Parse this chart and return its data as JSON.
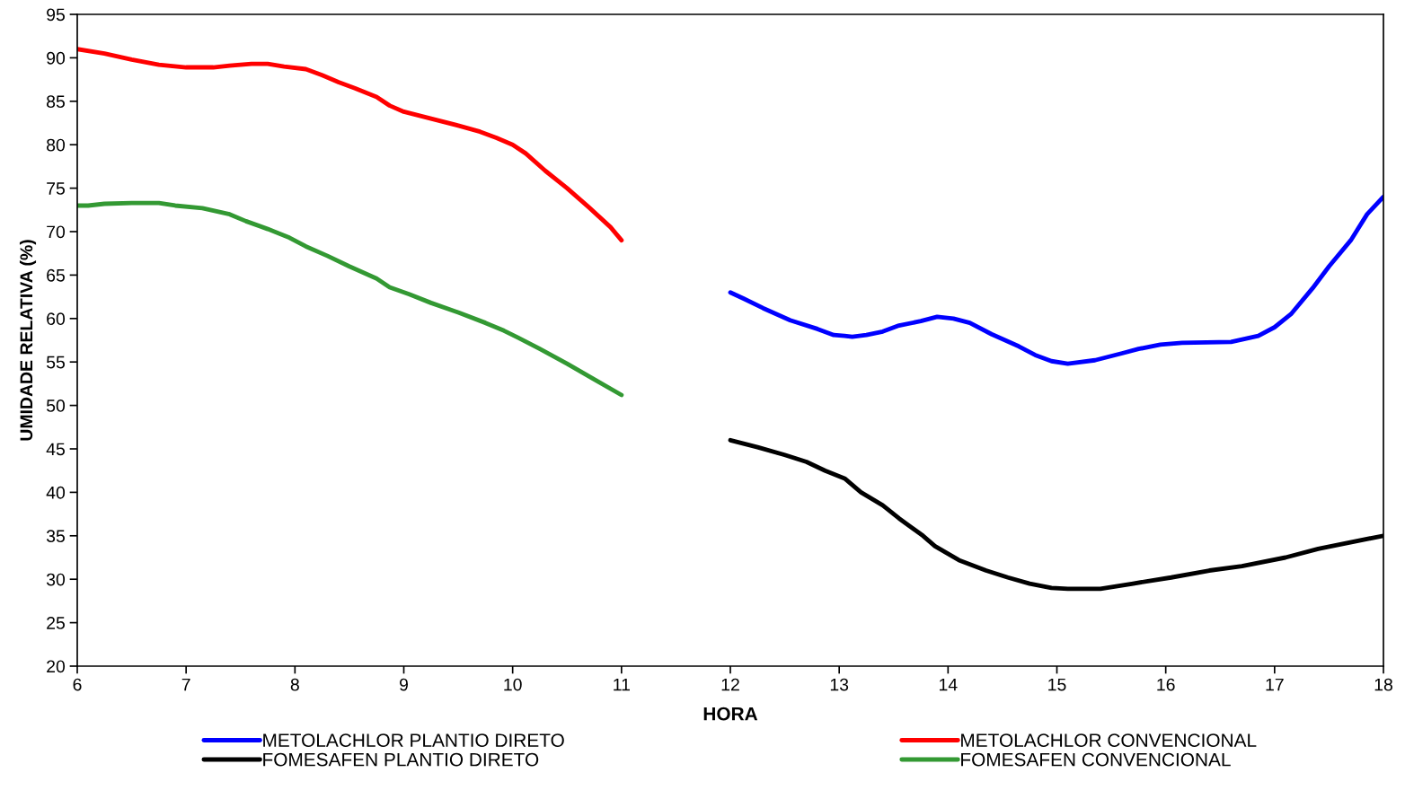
{
  "chart_data": {
    "type": "line",
    "xlabel": "HORA",
    "ylabel": "UMIDADE RELATIVA (%)",
    "xlim": [
      6,
      18
    ],
    "ylim": [
      20,
      95
    ],
    "xticks": [
      6,
      7,
      8,
      9,
      10,
      11,
      12,
      13,
      14,
      15,
      16,
      17,
      18
    ],
    "yticks": [
      20,
      25,
      30,
      35,
      40,
      45,
      50,
      55,
      60,
      65,
      70,
      75,
      80,
      85,
      90,
      95
    ],
    "grid": false,
    "legend": "bottom",
    "marker": "none",
    "line_style": "solid",
    "series": [
      {
        "name": "METOLACHLOR PLANTIO DIRETO",
        "color": "#0000ff",
        "x": [
          12,
          12.12,
          12.3,
          12.55,
          12.8,
          12.95,
          13.05,
          13.12,
          13.25,
          13.4,
          13.55,
          13.75,
          13.9,
          14.05,
          14.2,
          14.4,
          14.65,
          14.8,
          14.95,
          15.1,
          15.35,
          15.6,
          15.75,
          15.95,
          16.15,
          16.6,
          16.85,
          17,
          17.15,
          17.35,
          17.5,
          17.7,
          17.85,
          18
        ],
        "values": [
          63,
          62.3,
          61.2,
          59.8,
          58.8,
          58.1,
          58,
          57.9,
          58.1,
          58.5,
          59.2,
          59.7,
          60.2,
          60,
          59.5,
          58.2,
          56.8,
          55.8,
          55.1,
          54.8,
          55.2,
          56,
          56.5,
          57,
          57.2,
          57.3,
          58,
          59,
          60.5,
          63.5,
          66,
          69,
          72,
          74
        ]
      },
      {
        "name": "FOMESAFEN PLANTIO DIRETO",
        "color": "#000000",
        "x": [
          12,
          12.25,
          12.5,
          12.7,
          12.87,
          13.05,
          13.2,
          13.4,
          13.55,
          13.77,
          13.88,
          14.1,
          14.35,
          14.55,
          14.75,
          14.95,
          15.1,
          15.4,
          15.7,
          16.05,
          16.4,
          16.7,
          17.1,
          17.4,
          18
        ],
        "values": [
          46,
          45.2,
          44.3,
          43.5,
          42.5,
          41.6,
          40,
          38.5,
          37,
          35,
          33.8,
          32.2,
          31,
          30.2,
          29.5,
          29,
          28.9,
          28.9,
          29.5,
          30.2,
          31,
          31.5,
          32.5,
          33.5,
          35
        ]
      },
      {
        "name": "METOLACHLOR CONVENCIONAL",
        "color": "#ff0000",
        "x": [
          6,
          6.25,
          6.5,
          6.75,
          7,
          7.25,
          7.4,
          7.6,
          7.75,
          7.9,
          8.1,
          8.25,
          8.4,
          8.55,
          8.75,
          8.87,
          9,
          9.25,
          9.5,
          9.7,
          9.85,
          10,
          10.12,
          10.3,
          10.5,
          10.7,
          10.9,
          11
        ],
        "values": [
          91,
          90.5,
          89.8,
          89.2,
          88.9,
          88.9,
          89.1,
          89.3,
          89.3,
          89,
          88.7,
          88,
          87.2,
          86.5,
          85.5,
          84.5,
          83.8,
          83,
          82.2,
          81.5,
          80.8,
          80,
          79,
          77,
          75,
          72.8,
          70.5,
          69
        ]
      },
      {
        "name": "FOMESAFEN CONVENCIONAL",
        "color": "#339933",
        "x": [
          6,
          6.1,
          6.25,
          6.5,
          6.75,
          6.9,
          7.15,
          7.4,
          7.55,
          7.75,
          7.95,
          8.1,
          8.3,
          8.5,
          8.75,
          8.87,
          9.05,
          9.25,
          9.5,
          9.75,
          9.92,
          10.05,
          10.25,
          10.5,
          10.75,
          11
        ],
        "values": [
          73,
          73,
          73.2,
          73.3,
          73.3,
          73,
          72.7,
          72,
          71.2,
          70.3,
          69.3,
          68.3,
          67.2,
          66,
          64.6,
          63.6,
          62.8,
          61.8,
          60.7,
          59.5,
          58.6,
          57.8,
          56.5,
          54.8,
          53,
          51.2
        ]
      }
    ]
  }
}
